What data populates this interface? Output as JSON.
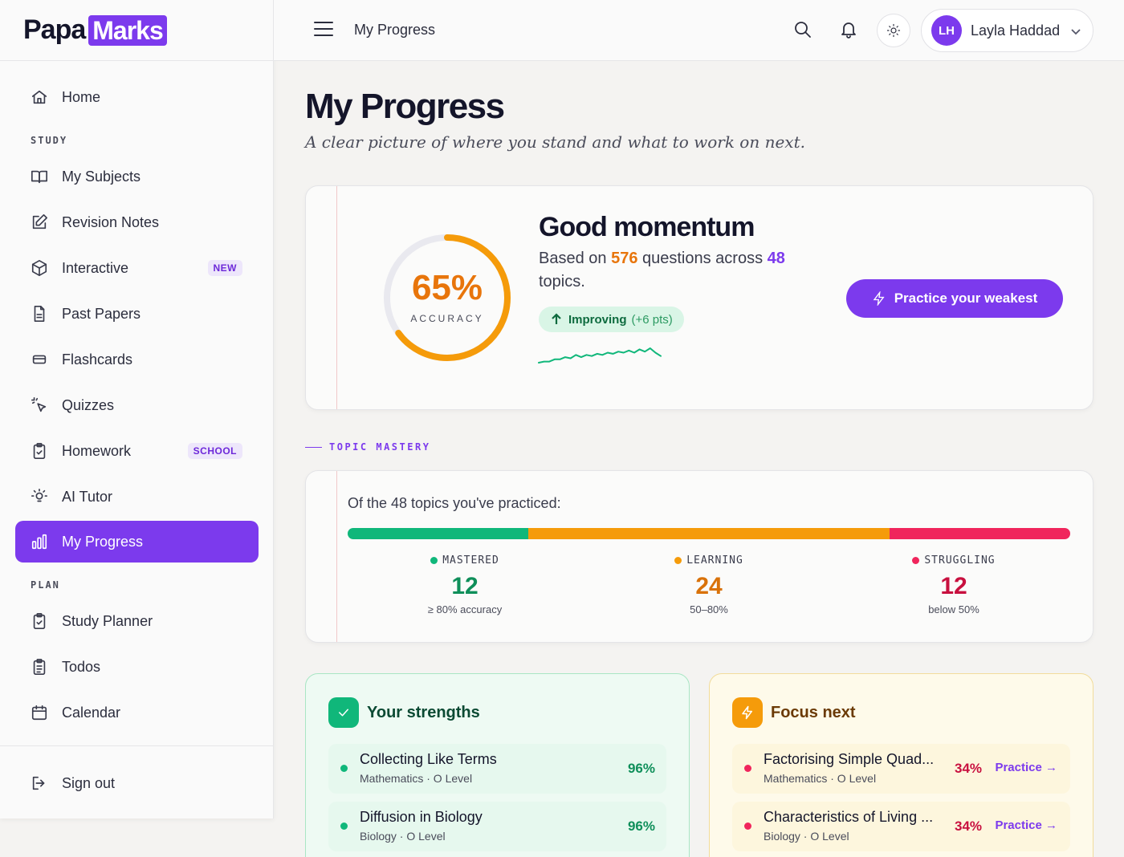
{
  "brand": {
    "part1": "Papa",
    "part2": "Marks"
  },
  "sidebar": {
    "home": "Home",
    "sections": {
      "study": "STUDY",
      "plan": "PLAN"
    },
    "study_items": [
      {
        "label": "My Subjects",
        "icon": "book-open-icon"
      },
      {
        "label": "Revision Notes",
        "icon": "edit-note-icon"
      },
      {
        "label": "Interactive",
        "icon": "cube-icon",
        "badge": "NEW"
      },
      {
        "label": "Past Papers",
        "icon": "document-icon"
      },
      {
        "label": "Flashcards",
        "icon": "cards-icon"
      },
      {
        "label": "Quizzes",
        "icon": "pointer-click-icon"
      },
      {
        "label": "Homework",
        "icon": "clipboard-check-icon",
        "badge": "SCHOOL"
      },
      {
        "label": "AI Tutor",
        "icon": "lightbulb-icon"
      },
      {
        "label": "My Progress",
        "icon": "bar-chart-icon",
        "active": true
      }
    ],
    "plan_items": [
      {
        "label": "Study Planner",
        "icon": "clipboard-check-icon"
      },
      {
        "label": "Todos",
        "icon": "clipboard-list-icon"
      },
      {
        "label": "Calendar",
        "icon": "calendar-icon"
      }
    ],
    "sign_out": "Sign out"
  },
  "header": {
    "title": "My Progress",
    "user": {
      "initials": "LH",
      "name": "Layla Haddad"
    }
  },
  "main": {
    "title": "My Progress",
    "subtitle": "A clear picture of where you stand and what to work on next."
  },
  "momentum": {
    "accuracy_value": 65,
    "accuracy_text": "65%",
    "accuracy_label": "ACCURACY",
    "title": "Good momentum",
    "desc_prefix": "Based on ",
    "questions": "576",
    "desc_mid": " questions across ",
    "topics": "48",
    "desc_suffix": " topics.",
    "trend_label": "Improving",
    "trend_delta": "(+6 pts)",
    "sparkline": [
      2,
      3,
      3,
      5,
      5,
      7,
      6,
      9,
      7,
      9,
      8,
      10,
      9,
      11,
      10,
      12,
      11,
      13,
      11,
      14,
      12,
      15,
      11,
      8
    ],
    "cta": "Practice your weakest"
  },
  "topic_mastery": {
    "section_label": "TOPIC MASTERY",
    "intro": "Of the 48 topics you've practiced:",
    "colors": {
      "mastered": "#10b77a",
      "learning": "#f59b0a",
      "struggling": "#f0255c"
    },
    "stats": [
      {
        "key": "mastered",
        "label": "MASTERED",
        "count": "12",
        "count_value": 12,
        "note": "≥ 80% accuracy",
        "color": "#0f8f5a"
      },
      {
        "key": "learning",
        "label": "LEARNING",
        "count": "24",
        "count_value": 24,
        "note": "50–80%",
        "color": "#d9720a"
      },
      {
        "key": "struggling",
        "label": "STRUGGLING",
        "count": "12",
        "count_value": 12,
        "note": "below 50%",
        "color": "#c8103f"
      }
    ]
  },
  "strengths": {
    "title": "Your strengths",
    "items": [
      {
        "name": "Collecting Like Terms",
        "meta": "Mathematics · O Level",
        "pct": "96%"
      },
      {
        "name": "Diffusion in Biology",
        "meta": "Biology · O Level",
        "pct": "96%"
      }
    ]
  },
  "focus": {
    "title": "Focus next",
    "link_label": "Practice →",
    "items": [
      {
        "name": "Factorising Simple Quad...",
        "meta": "Mathematics · O Level",
        "pct": "34%"
      },
      {
        "name": "Characteristics of Living ...",
        "meta": "Biology · O Level",
        "pct": "34%"
      }
    ]
  }
}
